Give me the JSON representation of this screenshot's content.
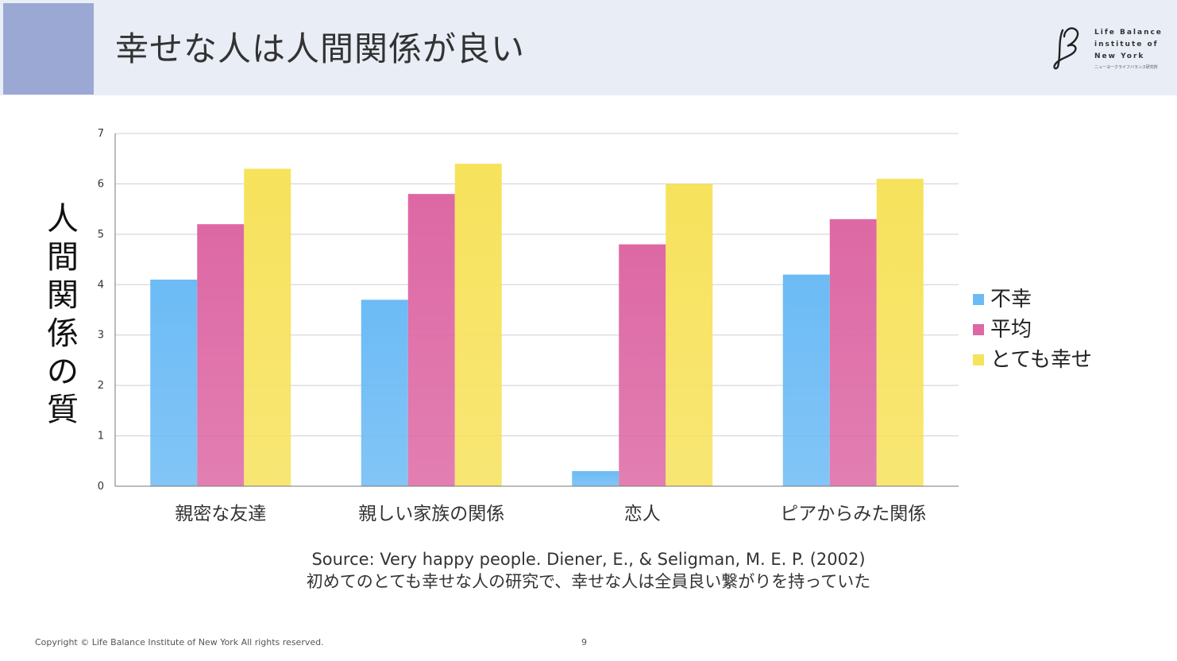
{
  "slide": {
    "title": "幸せな人は人間関係が良い",
    "page_number": "9",
    "copyright": "Copyright © Life Balance Institute of New York All rights reserved.",
    "source_line1": "Source: Very happy people. Diener, E., & Seligman, M. E. P. (2002)",
    "source_line2": "初めてのとても幸せな人の研究で、幸せな人は全員良い繋がりを持っていた"
  },
  "logo": {
    "line1": "Life Balance",
    "line2": "institute of",
    "line3": "New York",
    "subtitle": "ニューヨークライフバランス研究所"
  },
  "colors": {
    "header_bg": "#e9edf6",
    "header_accent": "#9aa8d3",
    "unhappy": "#6cbbf5",
    "average": "#dd68a4",
    "very_happy": "#f7e25c"
  },
  "chart_data": {
    "type": "bar",
    "title": "",
    "xlabel": "",
    "ylabel": "人間関係の質",
    "ylim": [
      0,
      7
    ],
    "yticks": [
      0,
      1,
      2,
      3,
      4,
      5,
      6,
      7
    ],
    "grid": true,
    "legend_position": "right",
    "categories": [
      "親密な友達",
      "親しい家族の関係",
      "恋人",
      "ピアからみた関係"
    ],
    "series": [
      {
        "name": "不幸",
        "color": "#6cbbf5",
        "values": [
          4.1,
          3.7,
          0.3,
          4.2
        ]
      },
      {
        "name": "平均",
        "color": "#dd68a4",
        "values": [
          5.2,
          5.8,
          4.8,
          5.3
        ]
      },
      {
        "name": "とても幸せ",
        "color": "#f7e25c",
        "values": [
          6.3,
          6.4,
          6.0,
          6.1
        ]
      }
    ]
  }
}
